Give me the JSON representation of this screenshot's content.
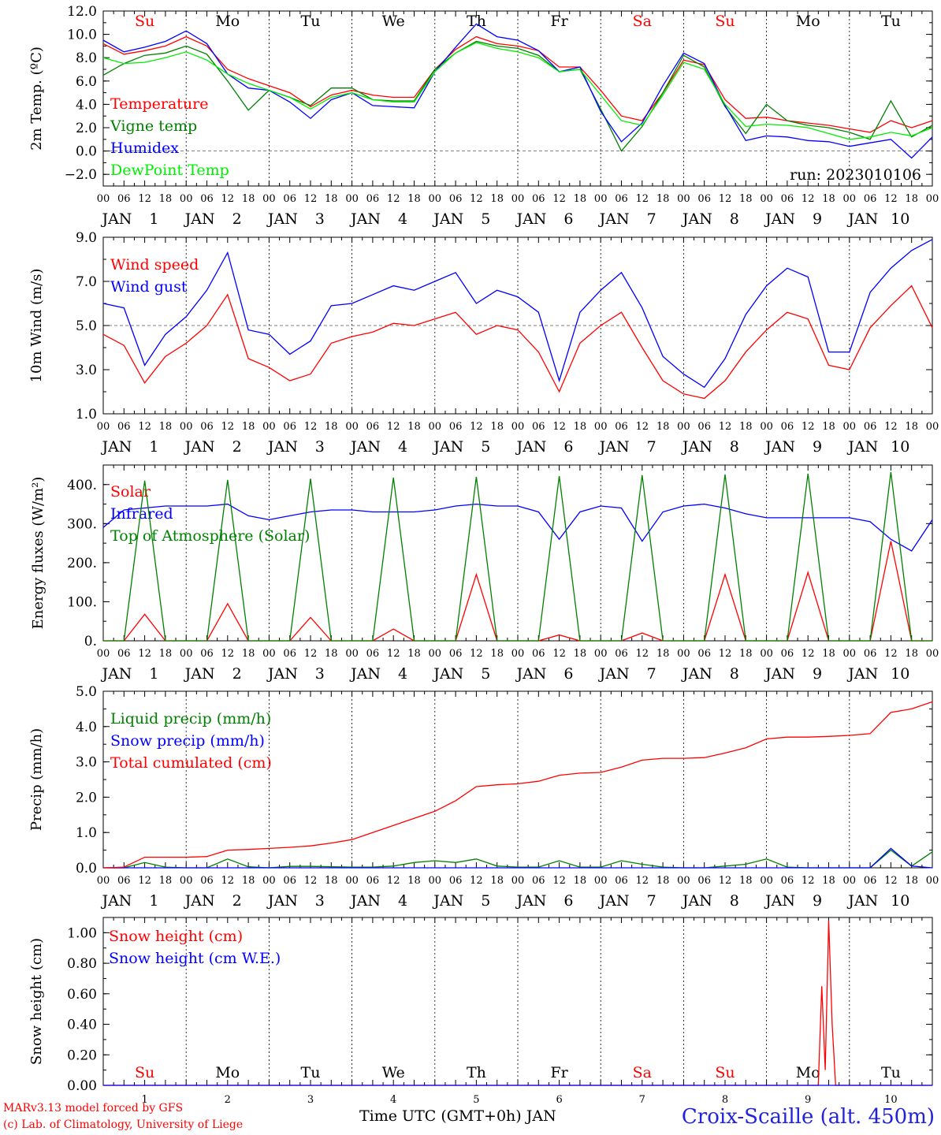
{
  "days": [
    "1",
    "2",
    "3",
    "4",
    "5",
    "6",
    "7",
    "8",
    "9",
    "10"
  ],
  "month": "JAN",
  "weekdays": [
    "Su",
    "Mo",
    "Tu",
    "We",
    "Th",
    "Fr",
    "Sa",
    "Su",
    "Mo",
    "Tu"
  ],
  "weekday_colors": [
    "#ff0000",
    "#000000",
    "#000000",
    "#000000",
    "#000000",
    "#000000",
    "#ff0000",
    "#ff0000",
    "#000000",
    "#000000"
  ],
  "hour_ticks": [
    "00",
    "06",
    "12",
    "18"
  ],
  "end_tick": "00",
  "footer": {
    "credit_line1": "MARv3.13 model forced by GFS",
    "credit_line2": "(c) Lab. of Climatology, University of Liege",
    "xlabel": "Time UTC (GMT+0h) JAN",
    "station": "Croix-Scaille (alt. 450m)"
  },
  "chart_data": [
    {
      "type": "line",
      "ylabel": "2m Temp. (ºC)",
      "ylim": [
        -3,
        12
      ],
      "yticks": [
        "12.0",
        "10.0",
        "8.0",
        "6.0",
        "4.0",
        "2.0",
        "0.0",
        "−2.0"
      ],
      "ytick_values": [
        12,
        10,
        8,
        6,
        4,
        2,
        0,
        -2
      ],
      "dashed_reference": 0,
      "annotation": "run: 2023010106",
      "x": [
        0,
        6,
        12,
        18,
        24,
        30,
        36,
        42,
        48,
        54,
        60,
        66,
        72,
        78,
        84,
        90,
        96,
        102,
        108,
        114,
        120,
        126,
        132,
        138,
        144,
        150,
        156,
        162,
        168,
        174,
        180,
        186,
        192,
        198,
        204,
        210,
        216,
        222,
        228,
        234,
        240
      ],
      "series": [
        {
          "name": "Temperature",
          "color": "#ff0000",
          "values": [
            9.2,
            8.3,
            8.6,
            9.0,
            9.8,
            9.0,
            7.0,
            6.2,
            5.6,
            5.0,
            3.8,
            4.8,
            5.2,
            4.8,
            4.6,
            4.6,
            7.0,
            8.7,
            9.8,
            9.2,
            9.0,
            8.6,
            7.2,
            7.2,
            5.2,
            3.0,
            2.6,
            5.0,
            7.8,
            7.4,
            4.4,
            2.8,
            2.9,
            2.6,
            2.4,
            2.2,
            1.9,
            1.6,
            2.6,
            2.0,
            2.6
          ]
        },
        {
          "name": "Vigne temp",
          "color": "#008000",
          "values": [
            6.5,
            7.5,
            8.2,
            8.4,
            9.0,
            8.3,
            6.0,
            3.5,
            5.2,
            4.6,
            3.9,
            5.4,
            5.4,
            4.4,
            4.3,
            4.3,
            7.0,
            8.4,
            9.4,
            9.0,
            8.8,
            8.2,
            6.8,
            7.0,
            3.6,
            0.0,
            2.1,
            5.0,
            8.2,
            7.2,
            3.8,
            1.5,
            4.0,
            2.6,
            2.2,
            2.0,
            1.6,
            1.0,
            4.3,
            1.2,
            2.2
          ]
        },
        {
          "name": "Humidex",
          "color": "#0000ff",
          "values": [
            9.5,
            8.5,
            8.9,
            9.4,
            10.3,
            9.2,
            6.6,
            5.4,
            5.2,
            4.2,
            2.8,
            4.4,
            5.0,
            3.9,
            3.8,
            3.7,
            6.8,
            8.9,
            10.9,
            9.8,
            9.5,
            8.6,
            6.8,
            7.2,
            3.4,
            0.8,
            2.4,
            5.6,
            8.4,
            7.5,
            3.9,
            0.9,
            1.3,
            1.2,
            0.9,
            0.8,
            0.4,
            0.7,
            1.0,
            -0.6,
            1.2
          ]
        },
        {
          "name": "DewPoint Temp",
          "color": "#00ee00",
          "values": [
            8.0,
            7.5,
            7.6,
            8.0,
            8.5,
            7.8,
            6.6,
            5.8,
            5.2,
            4.6,
            3.6,
            4.6,
            5.0,
            4.4,
            4.2,
            4.2,
            6.8,
            8.4,
            9.3,
            8.8,
            8.5,
            8.0,
            6.8,
            7.0,
            4.8,
            2.6,
            2.2,
            4.8,
            7.6,
            7.0,
            4.0,
            2.1,
            2.3,
            2.2,
            2.0,
            1.5,
            1.0,
            1.2,
            1.6,
            1.3,
            2.0
          ]
        }
      ]
    },
    {
      "type": "line",
      "ylabel": "10m Wind (m/s)",
      "ylim": [
        1,
        9
      ],
      "yticks": [
        "9.0",
        "7.0",
        "5.0",
        "3.0",
        "1.0"
      ],
      "ytick_values": [
        9,
        7,
        5,
        3,
        1
      ],
      "dashed_reference": 5,
      "x": [
        0,
        6,
        12,
        18,
        24,
        30,
        36,
        42,
        48,
        54,
        60,
        66,
        72,
        78,
        84,
        90,
        96,
        102,
        108,
        114,
        120,
        126,
        132,
        138,
        144,
        150,
        156,
        162,
        168,
        174,
        180,
        186,
        192,
        198,
        204,
        210,
        216,
        222,
        228,
        234,
        240
      ],
      "series": [
        {
          "name": "Wind speed",
          "color": "#ff0000",
          "values": [
            4.6,
            4.1,
            2.4,
            3.6,
            4.2,
            5.0,
            6.4,
            3.5,
            3.1,
            2.5,
            2.8,
            4.2,
            4.5,
            4.7,
            5.1,
            5.0,
            5.3,
            5.6,
            4.6,
            5.0,
            4.8,
            3.8,
            2.0,
            4.2,
            5.0,
            5.6,
            4.0,
            2.5,
            1.9,
            1.7,
            2.5,
            3.8,
            4.8,
            5.6,
            5.3,
            3.2,
            3.0,
            4.9,
            5.9,
            6.8,
            4.9
          ]
        },
        {
          "name": "Wind gust",
          "color": "#0000ff",
          "values": [
            6.0,
            5.8,
            3.2,
            4.6,
            5.4,
            6.6,
            8.3,
            4.8,
            4.6,
            3.7,
            4.3,
            5.9,
            6.0,
            6.4,
            6.8,
            6.6,
            7.0,
            7.4,
            6.0,
            6.6,
            6.3,
            5.6,
            2.5,
            5.6,
            6.6,
            7.4,
            5.8,
            3.6,
            2.8,
            2.2,
            3.5,
            5.5,
            6.8,
            7.6,
            7.2,
            3.8,
            3.8,
            6.5,
            7.6,
            8.4,
            8.9
          ]
        }
      ]
    },
    {
      "type": "line",
      "ylabel": "Energy fluxes (W/m²)",
      "ylim": [
        0,
        450
      ],
      "yticks": [
        "400.",
        "300.",
        "200.",
        "100.",
        "0."
      ],
      "ytick_values": [
        400,
        300,
        200,
        100,
        0
      ],
      "x": [
        0,
        6,
        12,
        18,
        24,
        30,
        36,
        42,
        48,
        54,
        60,
        66,
        72,
        78,
        84,
        90,
        96,
        102,
        108,
        114,
        120,
        126,
        132,
        138,
        144,
        150,
        156,
        162,
        168,
        174,
        180,
        186,
        192,
        198,
        204,
        210,
        216,
        222,
        228,
        234,
        240
      ],
      "series": [
        {
          "name": "Solar",
          "color": "#ff0000",
          "values": [
            0,
            0,
            68,
            0,
            0,
            0,
            95,
            0,
            0,
            0,
            60,
            0,
            0,
            0,
            30,
            0,
            0,
            0,
            170,
            0,
            0,
            0,
            15,
            0,
            0,
            0,
            20,
            0,
            0,
            0,
            170,
            0,
            0,
            0,
            175,
            0,
            0,
            0,
            255,
            0,
            0
          ]
        },
        {
          "name": "Infrared",
          "color": "#0000ff",
          "values": [
            290,
            335,
            340,
            345,
            345,
            345,
            350,
            320,
            310,
            320,
            330,
            335,
            335,
            330,
            330,
            330,
            335,
            345,
            350,
            345,
            345,
            330,
            260,
            330,
            345,
            340,
            255,
            330,
            345,
            350,
            340,
            325,
            315,
            315,
            315,
            315,
            315,
            305,
            260,
            230,
            310
          ]
        },
        {
          "name": "Top of Atmosphere (Solar)",
          "color": "#008000",
          "values": [
            0,
            0,
            410,
            0,
            0,
            0,
            412,
            0,
            0,
            0,
            415,
            0,
            0,
            0,
            418,
            0,
            0,
            0,
            420,
            0,
            0,
            0,
            422,
            0,
            0,
            0,
            424,
            0,
            0,
            0,
            426,
            0,
            0,
            0,
            428,
            0,
            0,
            0,
            432,
            0,
            0
          ]
        }
      ]
    },
    {
      "type": "line",
      "ylabel": "Precip (mm/h)",
      "ylim": [
        0,
        5
      ],
      "yticks": [
        "5.0",
        "4.0",
        "3.0",
        "2.0",
        "1.0",
        "0.0"
      ],
      "ytick_values": [
        5,
        4,
        3,
        2,
        1,
        0
      ],
      "x": [
        0,
        6,
        12,
        18,
        24,
        30,
        36,
        42,
        48,
        54,
        60,
        66,
        72,
        78,
        84,
        90,
        96,
        102,
        108,
        114,
        120,
        126,
        132,
        138,
        144,
        150,
        156,
        162,
        168,
        174,
        180,
        186,
        192,
        198,
        204,
        210,
        216,
        222,
        228,
        234,
        240
      ],
      "series": [
        {
          "name": "Liquid precip (mm/h)",
          "color": "#008000",
          "values": [
            0,
            0,
            0.15,
            0.02,
            0,
            0,
            0.25,
            0.03,
            0,
            0.04,
            0.04,
            0.03,
            0.02,
            0.02,
            0.05,
            0.15,
            0.2,
            0.15,
            0.25,
            0.05,
            0.02,
            0.02,
            0.2,
            0.02,
            0.02,
            0.2,
            0.1,
            0.02,
            0,
            0,
            0.05,
            0.1,
            0.25,
            0.02,
            0,
            0,
            0,
            0,
            0.5,
            0.05,
            0.45
          ]
        },
        {
          "name": "Snow precip (mm/h)",
          "color": "#0000ff",
          "values": [
            0,
            0,
            0,
            0,
            0,
            0,
            0,
            0,
            0,
            0,
            0,
            0,
            0,
            0,
            0,
            0,
            0,
            0,
            0,
            0,
            0,
            0,
            0,
            0,
            0,
            0,
            0,
            0,
            0,
            0,
            0,
            0,
            0,
            0,
            0,
            0,
            0,
            0,
            0.55,
            0.05,
            0
          ]
        },
        {
          "name": "Total cumulated (cm)",
          "color": "#ff0000",
          "values": [
            0,
            0.02,
            0.3,
            0.3,
            0.3,
            0.32,
            0.5,
            0.52,
            0.55,
            0.58,
            0.62,
            0.7,
            0.8,
            1.0,
            1.2,
            1.4,
            1.6,
            1.9,
            2.3,
            2.35,
            2.38,
            2.45,
            2.62,
            2.68,
            2.7,
            2.85,
            3.05,
            3.1,
            3.1,
            3.12,
            3.25,
            3.4,
            3.65,
            3.7,
            3.7,
            3.72,
            3.75,
            3.8,
            4.4,
            4.5,
            4.7
          ]
        }
      ]
    },
    {
      "type": "line",
      "ylabel": "Snow height (cm)",
      "ylim": [
        0,
        1.1
      ],
      "yticks": [
        "1.00",
        "0.80",
        "0.60",
        "0.40",
        "0.20",
        "0.00"
      ],
      "ytick_values": [
        1.0,
        0.8,
        0.6,
        0.4,
        0.2,
        0.0
      ],
      "x": [
        0,
        24,
        48,
        72,
        96,
        120,
        144,
        168,
        192,
        207,
        208,
        209,
        210,
        211,
        212,
        216,
        240
      ],
      "series": [
        {
          "name": "Snow height (cm)",
          "color": "#ff0000",
          "values": [
            0,
            0,
            0,
            0,
            0,
            0,
            0,
            0,
            0,
            0,
            0.65,
            0.1,
            1.08,
            0.4,
            0,
            0,
            0
          ]
        },
        {
          "name": "Snow height (cm W.E.)",
          "color": "#0000ff",
          "values": [
            0,
            0,
            0,
            0,
            0,
            0,
            0,
            0,
            0,
            0,
            0,
            0,
            0,
            0,
            0,
            0,
            0
          ]
        }
      ]
    }
  ]
}
